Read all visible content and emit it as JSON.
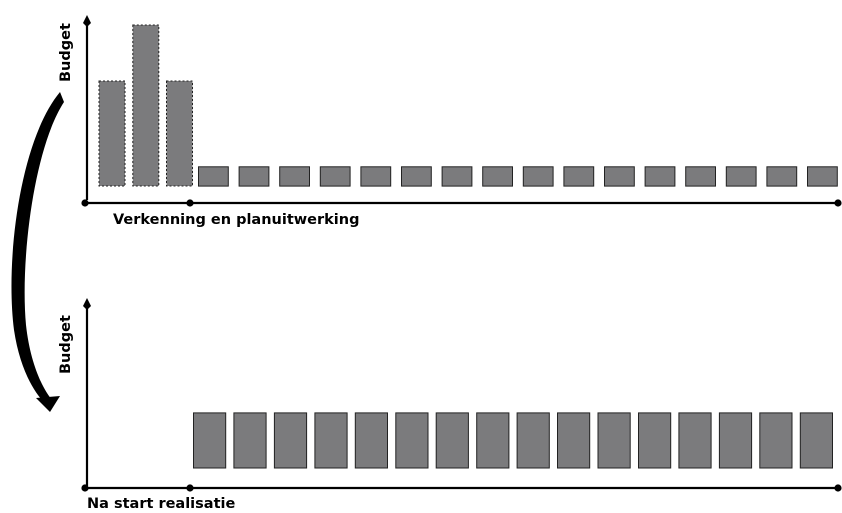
{
  "colors": {
    "bar_fill": "#7b7b7d",
    "bar_stroke": "#222222",
    "axis": "#000000",
    "arrow": "#000000"
  },
  "chart_data": [
    {
      "type": "bar",
      "title": "",
      "xlabel": "Verkenning en planuitwerking",
      "ylabel": "Budget",
      "grid": false,
      "series": [
        {
          "values": [
            3,
            4.6,
            3,
            0.55,
            0.55,
            0.55,
            0.55,
            0.55,
            0.55,
            0.55,
            0.55,
            0.55,
            0.55,
            0.55,
            0.55,
            0.55,
            0.55,
            0.55,
            0.55
          ]
        }
      ],
      "dashed_bars": [
        0,
        1,
        2
      ]
    },
    {
      "type": "bar",
      "title": "",
      "xlabel": "Na start realisatie",
      "ylabel": "Budget",
      "grid": false,
      "series": [
        {
          "values": [
            0,
            0,
            0,
            1.7,
            1.7,
            1.7,
            1.7,
            1.7,
            1.7,
            1.7,
            1.7,
            1.7,
            1.7,
            1.7,
            1.7,
            1.7,
            1.7,
            1.7,
            1.7
          ]
        }
      ]
    }
  ]
}
